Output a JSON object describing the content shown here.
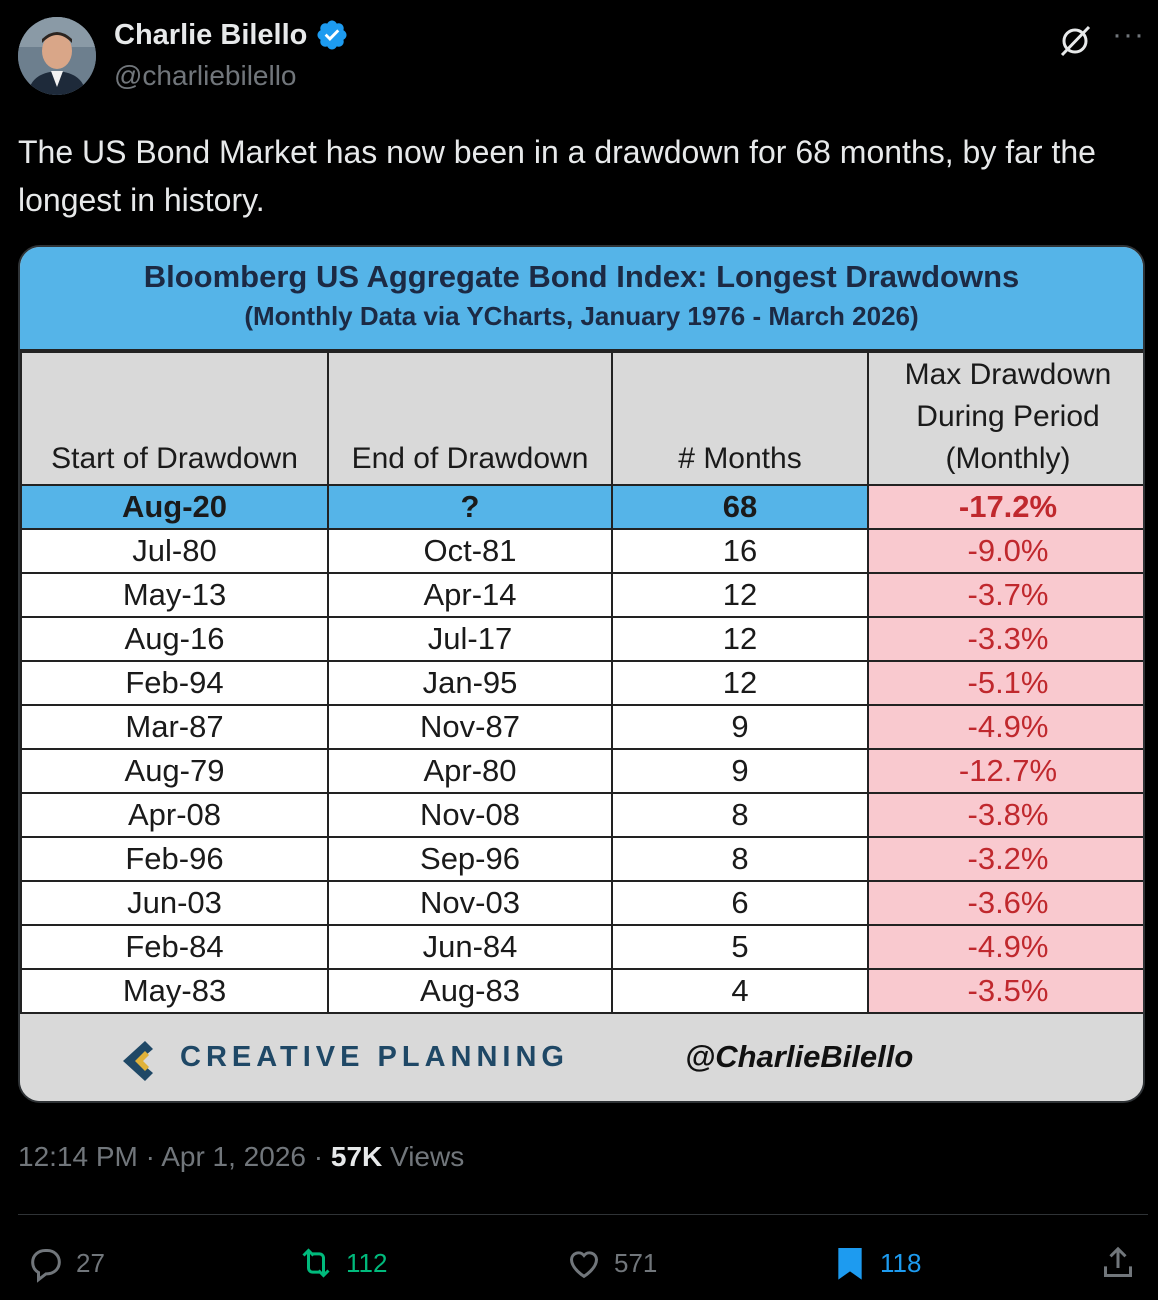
{
  "author": {
    "name": "Charlie Bilello",
    "handle": "@charliebilello"
  },
  "tweet": {
    "text": "The US Bond Market has now been in a drawdown for 68 months, by far the longest in history."
  },
  "card": {
    "title": "Bloomberg US Aggregate Bond Index: Longest Drawdowns",
    "subtitle": "(Monthly Data via YCharts, January 1976 - March 2026)",
    "columns": [
      "Start of Drawdown",
      "End of Drawdown",
      "# Months",
      "Max Drawdown During Period (Monthly)"
    ],
    "header_lines": {
      "col4_l1": "Max Drawdown",
      "col4_l2": "During Period",
      "col4_l3": "(Monthly)"
    },
    "rows": [
      [
        "Aug-20",
        "?",
        "68",
        "-17.2%"
      ],
      [
        "Jul-80",
        "Oct-81",
        "16",
        "-9.0%"
      ],
      [
        "May-13",
        "Apr-14",
        "12",
        "-3.7%"
      ],
      [
        "Aug-16",
        "Jul-17",
        "12",
        "-3.3%"
      ],
      [
        "Feb-94",
        "Jan-95",
        "12",
        "-5.1%"
      ],
      [
        "Mar-87",
        "Nov-87",
        "9",
        "-4.9%"
      ],
      [
        "Aug-79",
        "Apr-80",
        "9",
        "-12.7%"
      ],
      [
        "Apr-08",
        "Nov-08",
        "8",
        "-3.8%"
      ],
      [
        "Feb-96",
        "Sep-96",
        "8",
        "-3.2%"
      ],
      [
        "Jun-03",
        "Nov-03",
        "6",
        "-3.6%"
      ],
      [
        "Feb-84",
        "Jun-84",
        "5",
        "-4.9%"
      ],
      [
        "May-83",
        "Aug-83",
        "4",
        "-3.5%"
      ]
    ],
    "footer_brand": "CREATIVE PLANNING",
    "footer_tag": "@CharlieBilello"
  },
  "meta": {
    "time": "12:14 PM",
    "date": "Apr 1, 2026",
    "views_count": "57K",
    "views_label": "Views"
  },
  "actions": {
    "replies": "27",
    "reposts": "112",
    "likes": "571",
    "bookmarks": "118"
  },
  "colors": {
    "accent": "#1d9bf0",
    "repost": "#00ba7c",
    "header_blue": "#55b4e8",
    "neg_bg": "#f9c9cf",
    "neg_text": "#c0282d"
  }
}
